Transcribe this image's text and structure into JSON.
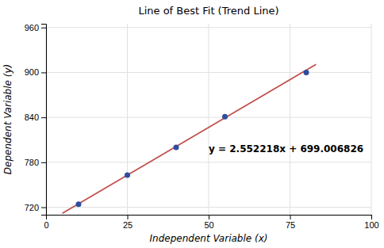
{
  "chart_data": {
    "type": "scatter",
    "title": "Line of Best Fit (Trend Line)",
    "xlabel": "Independent Variable (x)",
    "ylabel": "Dependent Variable (y)",
    "series": [
      {
        "type": "scatter",
        "color": "#2e4d9e",
        "x": [
          10,
          25,
          40,
          55,
          80
        ],
        "values": [
          724,
          763,
          800,
          841,
          900
        ]
      },
      {
        "type": "line",
        "color": "#c0504d",
        "x": [
          5,
          83
        ],
        "values": [
          711.767916,
          910.84092
        ]
      }
    ],
    "annotations": [
      {
        "text": "y = 2.552218x + 699.006826",
        "x": 50,
        "y": 797
      }
    ],
    "xlim": [
      0,
      100
    ],
    "ylim": [
      710,
      965
    ],
    "xticks": [
      0,
      25,
      50,
      75,
      100
    ],
    "yticks": [
      720,
      780,
      840,
      900,
      960
    ],
    "grid": true
  }
}
